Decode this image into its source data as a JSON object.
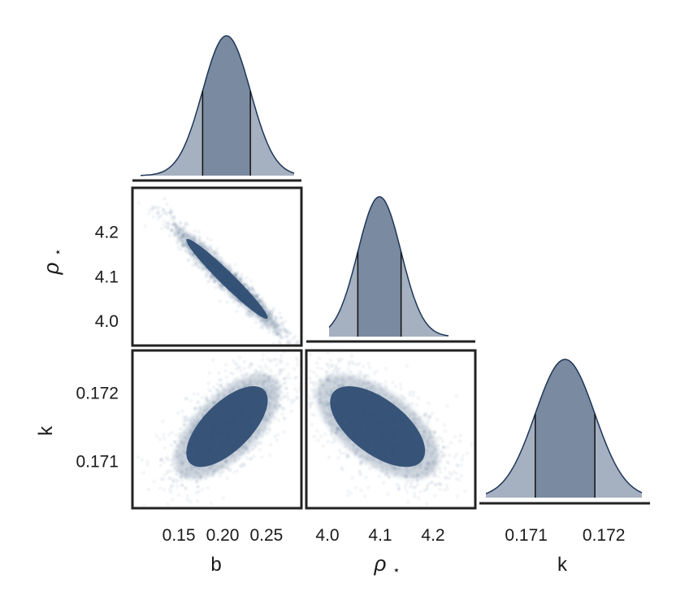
{
  "colors": {
    "fill": "#2f4d73",
    "fill_light": "#a5b0c0",
    "fill_mid": "#7a8aa0",
    "edge": "#1e3658",
    "frame": "#222222"
  },
  "labels": {
    "x_b": "b",
    "x_rho": "ρ",
    "x_k": "k",
    "y_rho": "ρ",
    "y_k": "k",
    "star": "⋆"
  },
  "chart_data": {
    "type": "corner",
    "parameters": [
      "b",
      "ρ⋆",
      "k"
    ],
    "marginals": [
      {
        "param": "b",
        "mean": 0.205,
        "sd": 0.03,
        "range": [
          0.097,
          0.29
        ],
        "quantiles": [
          0.175,
          0.235
        ]
      },
      {
        "param": "ρ⋆",
        "mean": 4.095,
        "sd": 0.058,
        "range": [
          3.96,
          4.28
        ],
        "quantiles": [
          4.037,
          4.153
        ]
      },
      {
        "param": "k",
        "mean": 0.17151,
        "sd": 0.00038,
        "range": [
          0.1705,
          0.17249
        ],
        "quantiles": [
          0.17113,
          0.17189
        ]
      }
    ],
    "pairs": [
      {
        "x": "b",
        "y": "ρ⋆",
        "xlim": [
          0.097,
          0.29
        ],
        "ylim": [
          3.945,
          4.3
        ],
        "correlation": -0.97
      },
      {
        "x": "b",
        "y": "k",
        "xlim": [
          0.097,
          0.29
        ],
        "ylim": [
          0.17032,
          0.17262
        ],
        "correlation": 0.65
      },
      {
        "x": "ρ⋆",
        "y": "k",
        "xlim": [
          3.96,
          4.28
        ],
        "ylim": [
          0.17032,
          0.17262
        ],
        "correlation": -0.6
      }
    ],
    "ticks": {
      "b": [
        "0.15",
        "0.20",
        "0.25"
      ],
      "ρ⋆": [
        "4.0",
        "4.1",
        "4.2"
      ],
      "k": [
        "0.171",
        "0.172"
      ]
    },
    "tick_values": {
      "b": [
        0.15,
        0.2,
        0.25
      ],
      "ρ⋆": [
        4.0,
        4.1,
        4.2
      ],
      "k": [
        0.171,
        0.172
      ]
    }
  }
}
